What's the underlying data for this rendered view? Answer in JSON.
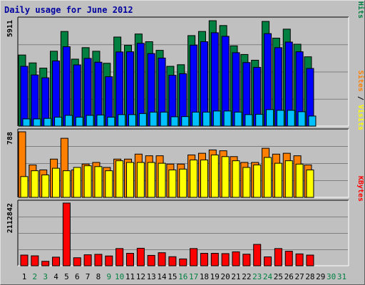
{
  "title": "Daily usage for June 2012",
  "chart_data": [
    {
      "type": "bar",
      "panel": "top",
      "ymax_label": "5911",
      "ylim": [
        0,
        5911
      ],
      "legend": [
        {
          "text": "Pages",
          "color": "#00c0ff"
        },
        {
          "text": " / ",
          "color": "#000000"
        },
        {
          "text": "Files",
          "color": "#0000ff"
        },
        {
          "text": " / ",
          "color": "#000000"
        },
        {
          "text": "Hits",
          "color": "#008040"
        }
      ],
      "series": [
        {
          "name": "Hits",
          "color": "#008040",
          "values": [
            3960,
            3520,
            3230,
            4170,
            5270,
            3730,
            4370,
            4170,
            3500,
            4960,
            4500,
            5130,
            4700,
            4220,
            3330,
            3420,
            5040,
            5270,
            5870,
            5600,
            4470,
            3990,
            3670,
            5830,
            4900,
            5400,
            4560,
            3860,
            null,
            null,
            null
          ]
        },
        {
          "name": "Files",
          "color": "#0000ff",
          "values": [
            3330,
            2850,
            2690,
            3630,
            4420,
            3410,
            3770,
            3560,
            2750,
            4130,
            4140,
            4610,
            4040,
            3790,
            2830,
            2920,
            4510,
            4700,
            5200,
            5000,
            4090,
            3540,
            3270,
            5150,
            4370,
            4680,
            4140,
            3210,
            null,
            null,
            null
          ]
        },
        {
          "name": "Pages",
          "color": "#00c0ff",
          "values": [
            400,
            400,
            430,
            500,
            600,
            500,
            600,
            620,
            500,
            640,
            640,
            700,
            780,
            780,
            520,
            530,
            780,
            780,
            840,
            840,
            780,
            640,
            660,
            920,
            880,
            880,
            800,
            560,
            null,
            null,
            null
          ]
        }
      ]
    },
    {
      "type": "bar",
      "panel": "middle",
      "ymax_label": "788",
      "ylim": [
        0,
        788
      ],
      "legend": [
        {
          "text": "Sites",
          "color": "#ff8000"
        },
        {
          "text": " / ",
          "color": "#000000"
        },
        {
          "text": "Visits",
          "color": "#ffff00"
        }
      ],
      "series": [
        {
          "name": "Sites",
          "color": "#ff8000",
          "values": [
            788,
            390,
            330,
            460,
            710,
            330,
            400,
            420,
            360,
            460,
            460,
            520,
            500,
            500,
            400,
            400,
            510,
            530,
            570,
            560,
            490,
            420,
            420,
            590,
            520,
            530,
            500,
            390,
            null,
            null,
            null
          ]
        },
        {
          "name": "Visits",
          "color": "#ffff00",
          "values": [
            250,
            320,
            270,
            350,
            320,
            360,
            380,
            370,
            320,
            440,
            420,
            420,
            420,
            410,
            330,
            340,
            450,
            450,
            510,
            490,
            440,
            360,
            390,
            480,
            410,
            440,
            400,
            330,
            null,
            null,
            null
          ]
        }
      ]
    },
    {
      "type": "bar",
      "panel": "bottom",
      "ymax_label": "2112842",
      "ylim": [
        0,
        2112842
      ],
      "legend": [
        {
          "text": "KBytes",
          "color": "#ff0000"
        }
      ],
      "series": [
        {
          "name": "KBytes",
          "color": "#ff0000",
          "values": [
            360000,
            335000,
            150000,
            290000,
            2112842,
            270000,
            370000,
            385000,
            330000,
            580000,
            420000,
            590000,
            350000,
            440000,
            305000,
            230000,
            580000,
            420000,
            420000,
            410000,
            470000,
            390000,
            720000,
            300000,
            580000,
            490000,
            400000,
            360000,
            null,
            null,
            null
          ]
        }
      ]
    }
  ],
  "x_labels": [
    "1",
    "2",
    "3",
    "4",
    "5",
    "6",
    "7",
    "8",
    "9",
    "10",
    "11",
    "12",
    "13",
    "14",
    "15",
    "16",
    "17",
    "18",
    "19",
    "20",
    "21",
    "22",
    "23",
    "24",
    "25",
    "26",
    "27",
    "28",
    "29",
    "30",
    "31"
  ],
  "weekend_days": [
    2,
    3,
    9,
    10,
    16,
    17,
    23,
    24,
    30,
    31
  ],
  "colors": {
    "title": "#0000a0",
    "weekday_label": "#000000",
    "weekend_label": "#008040",
    "grid": "#808080",
    "panel_bg": "#c0c0c0"
  }
}
